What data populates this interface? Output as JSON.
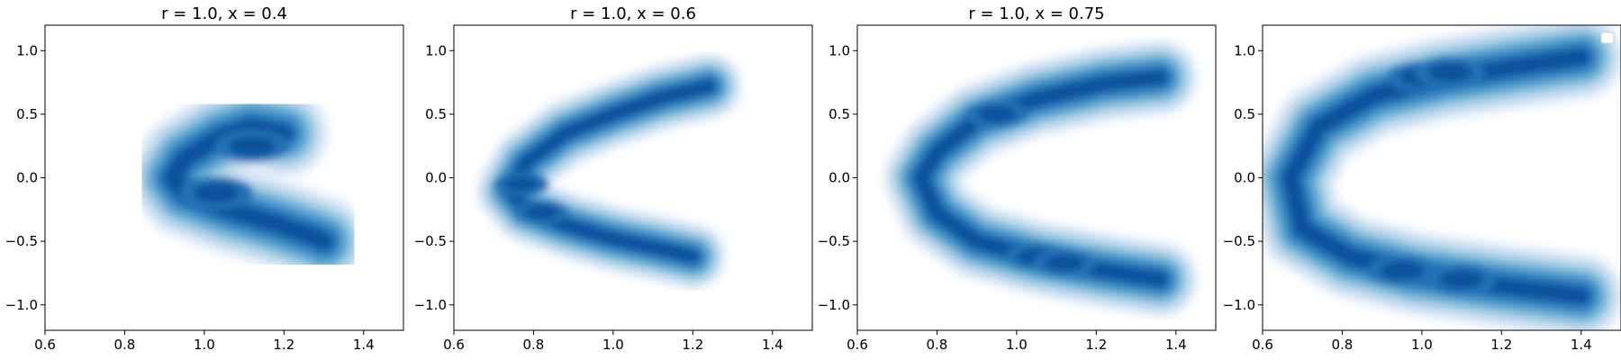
{
  "colors": {
    "background": "#ffffff",
    "axis": "#000000",
    "levels": [
      "#f7fbff",
      "#deebf7",
      "#c6dbef",
      "#9ecae1",
      "#6baed6",
      "#4292c6",
      "#2171b5",
      "#08519c"
    ]
  },
  "chart_data": [
    {
      "type": "kde_contour",
      "title": "r = 1.0, x = 0.4",
      "xlim": [
        0.6,
        1.5
      ],
      "ylim": [
        -1.2,
        1.2
      ],
      "xticks": [
        "0.6",
        "0.8",
        "1.0",
        "1.2",
        "1.4"
      ],
      "yticks": [
        "−1.0",
        "−0.5",
        "0.0",
        "0.5",
        "1.0"
      ],
      "density_path": [
        [
          1.2,
          0.35
        ],
        [
          1.12,
          0.4
        ],
        [
          1.04,
          0.32
        ],
        [
          0.95,
          0.15
        ],
        [
          0.92,
          0.0
        ],
        [
          0.95,
          -0.12
        ],
        [
          1.06,
          -0.25
        ],
        [
          1.18,
          -0.36
        ],
        [
          1.28,
          -0.47
        ],
        [
          1.3,
          -0.5
        ]
      ],
      "width": 0.1,
      "peaks": [
        [
          1.03,
          -0.12
        ],
        [
          1.12,
          0.25
        ]
      ]
    },
    {
      "type": "kde_contour",
      "title": "r = 1.0, x = 0.6",
      "xlim": [
        0.6,
        1.5
      ],
      "ylim": [
        -1.2,
        1.2
      ],
      "xticks": [
        "0.6",
        "0.8",
        "1.0",
        "1.2",
        "1.4"
      ],
      "yticks": [
        "−1.0",
        "−0.5",
        "0.0",
        "0.5",
        "1.0"
      ],
      "density_path": [
        [
          1.24,
          0.72
        ],
        [
          1.12,
          0.63
        ],
        [
          1.0,
          0.5
        ],
        [
          0.88,
          0.35
        ],
        [
          0.78,
          0.12
        ],
        [
          0.74,
          -0.1
        ],
        [
          0.78,
          -0.25
        ],
        [
          0.88,
          -0.37
        ],
        [
          1.0,
          -0.48
        ],
        [
          1.12,
          -0.56
        ],
        [
          1.2,
          -0.62
        ]
      ],
      "width": 0.075,
      "peaks": [
        [
          0.82,
          -0.27
        ],
        [
          0.77,
          -0.05
        ]
      ]
    },
    {
      "type": "kde_contour",
      "title": "r = 1.0, x = 0.75",
      "xlim": [
        0.6,
        1.5
      ],
      "ylim": [
        -1.2,
        1.2
      ],
      "xticks": [
        "0.6",
        "0.8",
        "1.0",
        "1.2",
        "1.4"
      ],
      "yticks": [
        "−1.0",
        "−0.5",
        "0.0",
        "0.5",
        "1.0"
      ],
      "density_path": [
        [
          1.36,
          0.79
        ],
        [
          1.22,
          0.74
        ],
        [
          1.05,
          0.62
        ],
        [
          0.9,
          0.45
        ],
        [
          0.8,
          0.2
        ],
        [
          0.76,
          0.0
        ],
        [
          0.8,
          -0.28
        ],
        [
          0.9,
          -0.5
        ],
        [
          1.05,
          -0.63
        ],
        [
          1.22,
          -0.73
        ],
        [
          1.36,
          -0.8
        ]
      ],
      "width": 0.085,
      "peaks": [
        [
          0.95,
          0.5
        ],
        [
          1.05,
          -0.62
        ],
        [
          1.12,
          -0.67
        ]
      ]
    },
    {
      "type": "kde_contour",
      "title": "",
      "xlim": [
        0.6,
        1.5
      ],
      "ylim": [
        -1.2,
        1.2
      ],
      "xticks": [
        "0.6",
        "0.8",
        "1.0",
        "1.2",
        "1.4"
      ],
      "yticks": [
        "−1.0",
        "−0.5",
        "0.0",
        "0.5",
        "1.0"
      ],
      "legend": "top-right (empty)",
      "density_path": [
        [
          1.4,
          0.95
        ],
        [
          1.25,
          0.88
        ],
        [
          1.05,
          0.78
        ],
        [
          0.88,
          0.65
        ],
        [
          0.74,
          0.4
        ],
        [
          0.67,
          0.0
        ],
        [
          0.7,
          -0.4
        ],
        [
          0.82,
          -0.62
        ],
        [
          0.98,
          -0.75
        ],
        [
          1.2,
          -0.85
        ],
        [
          1.4,
          -0.93
        ]
      ],
      "width": 0.095,
      "peaks": [
        [
          1.0,
          0.79
        ],
        [
          1.07,
          0.83
        ],
        [
          0.95,
          -0.73
        ],
        [
          1.1,
          -0.8
        ]
      ]
    }
  ]
}
